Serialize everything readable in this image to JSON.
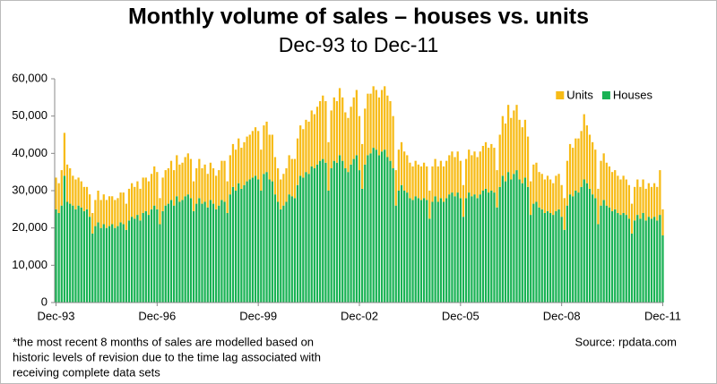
{
  "chart_data": {
    "type": "bar",
    "stacked": true,
    "title": "Monthly volume of sales – houses vs. units",
    "subtitle": "Dec-93 to Dec-11",
    "footnote": [
      "*the most recent 8 months of sales are modelled based on",
      "historic levels of revision due to the time lag associated with",
      "receiving complete data sets"
    ],
    "source": "Source: rpdata.com",
    "legend": "top-right",
    "grid": false,
    "ylim": [
      0,
      60000
    ],
    "yticks": [
      0,
      {
        "value": 10000,
        "label": "10,000"
      },
      {
        "value": 20000,
        "label": "20,000"
      },
      {
        "value": 30000,
        "label": "30,000"
      },
      {
        "value": 40000,
        "label": "40,000"
      },
      {
        "value": 50000,
        "label": "50,000"
      },
      {
        "value": 60000,
        "label": "60,000"
      }
    ],
    "categories": [
      "Dec-93",
      null,
      null,
      null,
      null,
      null,
      null,
      null,
      null,
      null,
      null,
      null,
      null,
      null,
      null,
      null,
      null,
      null,
      null,
      null,
      null,
      null,
      null,
      null,
      null,
      null,
      null,
      null,
      null,
      null,
      null,
      null,
      null,
      null,
      null,
      null,
      "Dec-96",
      null,
      null,
      null,
      null,
      null,
      null,
      null,
      null,
      null,
      null,
      null,
      null,
      null,
      null,
      null,
      null,
      null,
      null,
      null,
      null,
      null,
      null,
      null,
      null,
      null,
      null,
      null,
      null,
      null,
      null,
      null,
      null,
      null,
      null,
      null,
      "Dec-99",
      null,
      null,
      null,
      null,
      null,
      null,
      null,
      null,
      null,
      null,
      null,
      null,
      null,
      null,
      null,
      null,
      null,
      null,
      null,
      null,
      null,
      null,
      null,
      null,
      null,
      null,
      null,
      null,
      null,
      null,
      null,
      null,
      null,
      null,
      null,
      "Dec-02",
      null,
      null,
      null,
      null,
      null,
      null,
      null,
      null,
      null,
      null,
      null,
      null,
      null,
      null,
      null,
      null,
      null,
      null,
      null,
      null,
      null,
      null,
      null,
      null,
      null,
      null,
      null,
      null,
      null,
      null,
      null,
      null,
      null,
      null,
      null,
      "Dec-05",
      null,
      null,
      null,
      null,
      null,
      null,
      null,
      null,
      null,
      null,
      null,
      null,
      null,
      null,
      null,
      null,
      null,
      null,
      null,
      null,
      null,
      null,
      null,
      null,
      null,
      null,
      null,
      null,
      null,
      null,
      null,
      null,
      null,
      null,
      null,
      "Dec-08",
      null,
      null,
      null,
      null,
      null,
      null,
      null,
      null,
      null,
      null,
      null,
      null,
      null,
      null,
      null,
      null,
      null,
      null,
      null,
      null,
      null,
      null,
      null,
      null,
      null,
      null,
      null,
      null,
      null,
      null,
      null,
      null,
      null,
      null,
      null,
      "Dec-11"
    ],
    "series": [
      {
        "name": "Houses",
        "color": "#19b254",
        "values": [
          25000,
          24000,
          26000,
          34000,
          27000,
          26500,
          26000,
          25000,
          26000,
          25500,
          24500,
          25000,
          23000,
          18500,
          20500,
          21500,
          20000,
          21000,
          20000,
          20500,
          21000,
          20000,
          20500,
          21500,
          21000,
          19500,
          22000,
          23000,
          22500,
          23500,
          22000,
          24000,
          24500,
          23500,
          25000,
          26000,
          25000,
          21000,
          24500,
          26000,
          26500,
          27500,
          26000,
          28500,
          27000,
          27500,
          28500,
          29000,
          28000,
          24500,
          26500,
          28000,
          26500,
          27000,
          25500,
          27500,
          26500,
          25000,
          26000,
          27500,
          27000,
          24000,
          29000,
          31000,
          30000,
          32000,
          30500,
          31500,
          32500,
          33000,
          33500,
          34000,
          33000,
          30000,
          34500,
          35000,
          33000,
          32500,
          29000,
          27000,
          25000,
          26000,
          27000,
          29000,
          28500,
          28000,
          31500,
          34000,
          33500,
          35000,
          34500,
          36500,
          36000,
          37000,
          38000,
          38500,
          37500,
          30000,
          36000,
          38000,
          37500,
          39500,
          38000,
          36000,
          35000,
          37000,
          38500,
          39500,
          35500,
          30500,
          37000,
          39500,
          40000,
          41500,
          41000,
          39500,
          40500,
          41000,
          39000,
          38000,
          36000,
          26000,
          30000,
          31500,
          30000,
          29500,
          28000,
          27500,
          28500,
          28000,
          27500,
          28000,
          27500,
          22500,
          27000,
          28500,
          27000,
          28000,
          27000,
          28000,
          29000,
          29500,
          28500,
          29500,
          28000,
          23000,
          28000,
          29500,
          28500,
          29000,
          28000,
          29000,
          30000,
          30500,
          29500,
          30000,
          29500,
          25500,
          31000,
          34000,
          32500,
          35000,
          33000,
          34500,
          35500,
          33000,
          32000,
          33500,
          31000,
          23500,
          26500,
          27000,
          25500,
          25000,
          24000,
          24500,
          24000,
          23500,
          24500,
          25000,
          23000,
          19500,
          26000,
          29000,
          28500,
          30000,
          29500,
          31000,
          33000,
          32000,
          30500,
          29000,
          28000,
          21000,
          26000,
          27500,
          26000,
          25500,
          24500,
          25000,
          24000,
          23500,
          24000,
          23500,
          22500,
          18500,
          22000,
          23500,
          22500,
          24000,
          22000,
          23000,
          22500,
          23000,
          22000,
          23500,
          18000
        ]
      },
      {
        "name": "Units",
        "color": "#f7bb16",
        "values": [
          8500,
          8000,
          9500,
          11500,
          10000,
          9500,
          8000,
          8000,
          7500,
          7000,
          6500,
          6000,
          6000,
          5500,
          7000,
          8500,
          7500,
          8000,
          7500,
          8000,
          7500,
          7500,
          7500,
          8000,
          8500,
          7000,
          8500,
          9000,
          8500,
          9000,
          8500,
          9500,
          9000,
          9000,
          9500,
          10500,
          10000,
          7000,
          9000,
          9500,
          9500,
          10500,
          9500,
          11000,
          10000,
          10000,
          10500,
          11000,
          10500,
          8000,
          9500,
          10500,
          9500,
          10000,
          9000,
          10000,
          9500,
          9000,
          9500,
          10500,
          11000,
          8500,
          10500,
          11500,
          11000,
          12000,
          11000,
          11500,
          12000,
          12000,
          12500,
          13000,
          13000,
          11000,
          13000,
          13500,
          12000,
          12500,
          10000,
          9000,
          8000,
          8500,
          9000,
          10500,
          10000,
          10500,
          12500,
          13500,
          13000,
          14000,
          14000,
          15000,
          14500,
          15500,
          16000,
          17000,
          16500,
          13000,
          15500,
          17000,
          16500,
          18000,
          17000,
          15000,
          14500,
          15500,
          16500,
          17500,
          14500,
          12000,
          15000,
          16500,
          16000,
          16500,
          16000,
          15500,
          16500,
          17000,
          16500,
          16000,
          14000,
          9500,
          11000,
          11500,
          10500,
          10000,
          9500,
          9000,
          9500,
          9000,
          9000,
          9500,
          9000,
          7500,
          9500,
          10000,
          9500,
          10000,
          9500,
          10000,
          10500,
          11000,
          10500,
          11000,
          10000,
          8500,
          10500,
          11500,
          11000,
          11500,
          11000,
          11500,
          12000,
          12500,
          12000,
          12500,
          12000,
          10000,
          14000,
          16000,
          15500,
          18000,
          16500,
          17000,
          17500,
          16000,
          15000,
          15500,
          13500,
          9000,
          10500,
          10500,
          9500,
          9500,
          9000,
          9500,
          9000,
          8500,
          9500,
          9500,
          8500,
          8500,
          12000,
          13500,
          13000,
          14000,
          14500,
          15000,
          17500,
          15500,
          14500,
          14000,
          13000,
          9500,
          12000,
          12500,
          11500,
          11000,
          10500,
          10500,
          10000,
          9500,
          10000,
          9500,
          9000,
          8000,
          9000,
          9500,
          8500,
          9000,
          8500,
          9000,
          8500,
          9000,
          9000,
          12000,
          7000
        ]
      }
    ]
  }
}
